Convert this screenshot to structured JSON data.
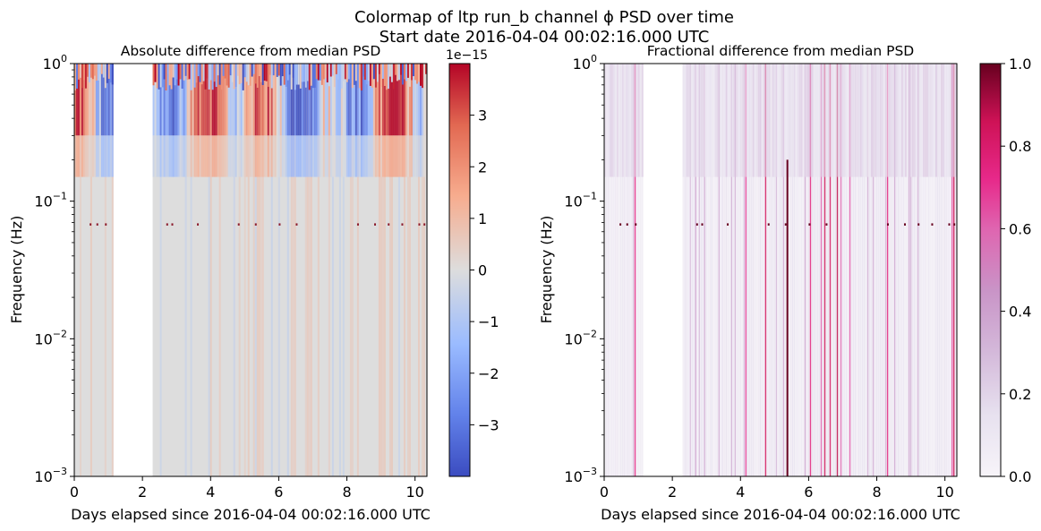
{
  "figure": {
    "title_line1": "Colormap of ltp run_b channel ϕ PSD over time",
    "title_line2": "Start date 2016-04-04 00:02:16.000 UTC"
  },
  "chart_data": [
    {
      "type": "heatmap",
      "title": "Absolute difference from median PSD",
      "xlabel": "Days elapsed since 2016-04-04 00:02:16.000 UTC",
      "ylabel": "Frequency (Hz)",
      "xlim": [
        0,
        10.35
      ],
      "ylim": [
        0.001,
        1
      ],
      "yscale": "log",
      "x_ticks": [
        0,
        2,
        4,
        6,
        8,
        10
      ],
      "x_tick_labels": [
        "0",
        "2",
        "4",
        "6",
        "8",
        "10"
      ],
      "y_ticks": [
        0.001,
        0.01,
        0.1,
        1
      ],
      "y_tick_labels": [
        {
          "base": "10",
          "exp": "−3"
        },
        {
          "base": "10",
          "exp": "−2"
        },
        {
          "base": "10",
          "exp": "−1"
        },
        {
          "base": "10",
          "exp": "0"
        }
      ],
      "colormap": "coolwarm",
      "colors": {
        "low": "#3b4cc0",
        "mid": "#dddddd",
        "high": "#b40426"
      },
      "data_gap_days": [
        1.15,
        2.3
      ],
      "colorbar": {
        "range": [
          -4e-15,
          4e-15
        ],
        "scale_label": "1e−15",
        "ticks": [
          -3,
          -2,
          -1,
          0,
          1,
          2,
          3
        ],
        "tick_labels": [
          "−3",
          "−2",
          "−1",
          "0",
          "1",
          "2",
          "3"
        ]
      }
    },
    {
      "type": "heatmap",
      "title": "Fractional difference from median PSD",
      "xlabel": "Days elapsed since 2016-04-04 00:02:16.000 UTC",
      "ylabel": "Frequency (Hz)",
      "xlim": [
        0,
        10.35
      ],
      "ylim": [
        0.001,
        1
      ],
      "yscale": "log",
      "x_ticks": [
        0,
        2,
        4,
        6,
        8,
        10
      ],
      "x_tick_labels": [
        "0",
        "2",
        "4",
        "6",
        "8",
        "10"
      ],
      "y_ticks": [
        0.001,
        0.01,
        0.1,
        1
      ],
      "y_tick_labels": [
        {
          "base": "10",
          "exp": "−3"
        },
        {
          "base": "10",
          "exp": "−2"
        },
        {
          "base": "10",
          "exp": "−1"
        },
        {
          "base": "10",
          "exp": "0"
        }
      ],
      "colormap": "PuRd",
      "colors": {
        "low": "#f7f4f9",
        "mid": "#df65b0",
        "high": "#67001f"
      },
      "data_gap_days": [
        1.15,
        2.3
      ],
      "colorbar": {
        "range": [
          0,
          1
        ],
        "ticks": [
          0,
          0.2,
          0.4,
          0.6,
          0.8,
          1.0
        ],
        "tick_labels": [
          "0.0",
          "0.2",
          "0.4",
          "0.6",
          "0.8",
          "1.0"
        ]
      }
    }
  ]
}
